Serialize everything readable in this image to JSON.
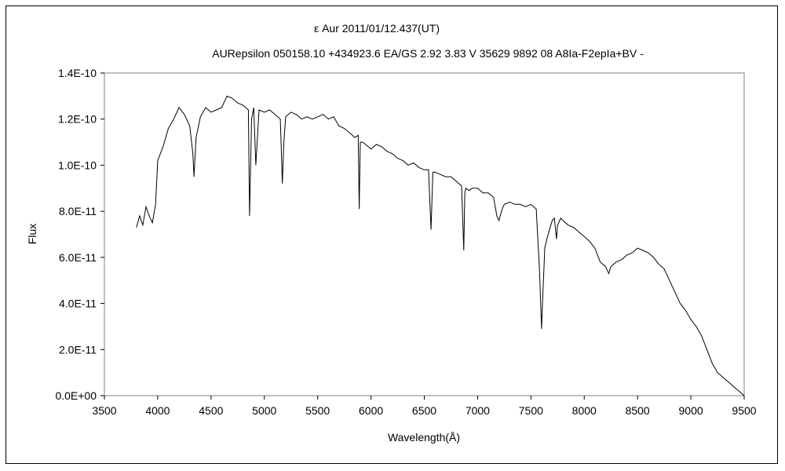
{
  "chart_data": {
    "type": "line",
    "title": "ε Aur   2011/01/12.437(UT)",
    "subtitle": "AURepsilon 050158.10 +434923.6 EA/GS 2.92 3.83 V 35629 9892 08 A8Ia-F2epIa+BV -",
    "xlabel": "Wavelength(Å)",
    "ylabel": "Flux",
    "xlim": [
      3500,
      9500
    ],
    "ylim": [
      0,
      1.4e-10
    ],
    "x_ticks": [
      "3500",
      "4000",
      "4500",
      "5000",
      "5500",
      "6000",
      "6500",
      "7000",
      "7500",
      "8000",
      "8500",
      "9000",
      "9500"
    ],
    "y_ticks": [
      "0.0E+00",
      "2.0E-11",
      "4.0E-11",
      "6.0E-11",
      "8.0E-11",
      "1.0E-10",
      "1.2E-10",
      "1.4E-10"
    ],
    "grid": false,
    "legend": "none",
    "series": [
      {
        "line_color": "#000000",
        "x": [
          3800,
          3830,
          3860,
          3890,
          3920,
          3950,
          3980,
          4000,
          4050,
          4100,
          4150,
          4200,
          4250,
          4300,
          4330,
          4340,
          4360,
          4400,
          4450,
          4500,
          4550,
          4600,
          4650,
          4700,
          4750,
          4800,
          4850,
          4861,
          4880,
          4900,
          4920,
          4950,
          5000,
          5050,
          5100,
          5150,
          5169,
          5183,
          5200,
          5250,
          5300,
          5350,
          5400,
          5450,
          5500,
          5550,
          5600,
          5650,
          5700,
          5750,
          5800,
          5850,
          5880,
          5890,
          5900,
          5920,
          5950,
          6000,
          6050,
          6100,
          6150,
          6200,
          6250,
          6300,
          6350,
          6400,
          6450,
          6500,
          6540,
          6563,
          6580,
          6600,
          6650,
          6700,
          6750,
          6800,
          6850,
          6870,
          6880,
          6890,
          6920,
          6950,
          7000,
          7050,
          7100,
          7150,
          7180,
          7200,
          7230,
          7250,
          7300,
          7350,
          7400,
          7450,
          7500,
          7550,
          7580,
          7600,
          7610,
          7630,
          7650,
          7680,
          7700,
          7720,
          7740,
          7750,
          7780,
          7800,
          7850,
          7900,
          7950,
          8000,
          8050,
          8100,
          8150,
          8200,
          8230,
          8250,
          8300,
          8350,
          8400,
          8450,
          8500,
          8550,
          8600,
          8650,
          8700,
          8750,
          8800,
          8850,
          8900,
          8950,
          9000,
          9050,
          9100,
          9150,
          9200,
          9250,
          9300,
          9350,
          9400,
          9450,
          9500
        ],
        "y": [
          7.3e-11,
          7.8e-11,
          7.4e-11,
          8.2e-11,
          7.8e-11,
          7.5e-11,
          8.3e-11,
          1.02e-10,
          1.08e-10,
          1.16e-10,
          1.2e-10,
          1.25e-10,
          1.22e-10,
          1.17e-10,
          1.05e-10,
          9.5e-11,
          1.12e-10,
          1.21e-10,
          1.25e-10,
          1.23e-10,
          1.24e-10,
          1.25e-10,
          1.3e-10,
          1.29e-10,
          1.27e-10,
          1.26e-10,
          1.24e-10,
          7.8e-11,
          1.2e-10,
          1.25e-10,
          1e-10,
          1.24e-10,
          1.23e-10,
          1.24e-10,
          1.22e-10,
          1.2e-10,
          9.2e-11,
          1.1e-10,
          1.21e-10,
          1.23e-10,
          1.22e-10,
          1.2e-10,
          1.21e-10,
          1.2e-10,
          1.21e-10,
          1.22e-10,
          1.2e-10,
          1.21e-10,
          1.17e-10,
          1.16e-10,
          1.14e-10,
          1.12e-10,
          1.13e-10,
          8.1e-11,
          1.1e-10,
          1.1e-10,
          1.09e-10,
          1.07e-10,
          1.09e-10,
          1.08e-10,
          1.06e-10,
          1.05e-10,
          1.03e-10,
          1.02e-10,
          1e-10,
          1.01e-10,
          9.9e-11,
          9.8e-11,
          9.8e-11,
          7.2e-11,
          9.7e-11,
          9.7e-11,
          9.6e-11,
          9.5e-11,
          9.5e-11,
          9.3e-11,
          9.1e-11,
          6.3e-11,
          8.8e-11,
          9e-11,
          8.9e-11,
          9e-11,
          9e-11,
          8.8e-11,
          8.8e-11,
          8.6e-11,
          7.8e-11,
          7.6e-11,
          8.1e-11,
          8.3e-11,
          8.4e-11,
          8.3e-11,
          8.3e-11,
          8.2e-11,
          8.3e-11,
          8.1e-11,
          5.5e-11,
          2.9e-11,
          4.2e-11,
          6.4e-11,
          6.8e-11,
          7.3e-11,
          7.6e-11,
          7.7e-11,
          6.8e-11,
          7.4e-11,
          7.7e-11,
          7.6e-11,
          7.4e-11,
          7.3e-11,
          7.1e-11,
          6.9e-11,
          6.7e-11,
          6.4e-11,
          5.8e-11,
          5.6e-11,
          5.3e-11,
          5.6e-11,
          5.8e-11,
          5.9e-11,
          6.1e-11,
          6.2e-11,
          6.4e-11,
          6.3e-11,
          6.2e-11,
          6e-11,
          5.7e-11,
          5.5e-11,
          5e-11,
          4.5e-11,
          4e-11,
          3.7e-11,
          3.3e-11,
          3e-11,
          2.6e-11,
          2e-11,
          1.4e-11,
          1e-11,
          8e-12,
          6e-12,
          4e-12,
          2e-12,
          0.0
        ]
      }
    ]
  }
}
